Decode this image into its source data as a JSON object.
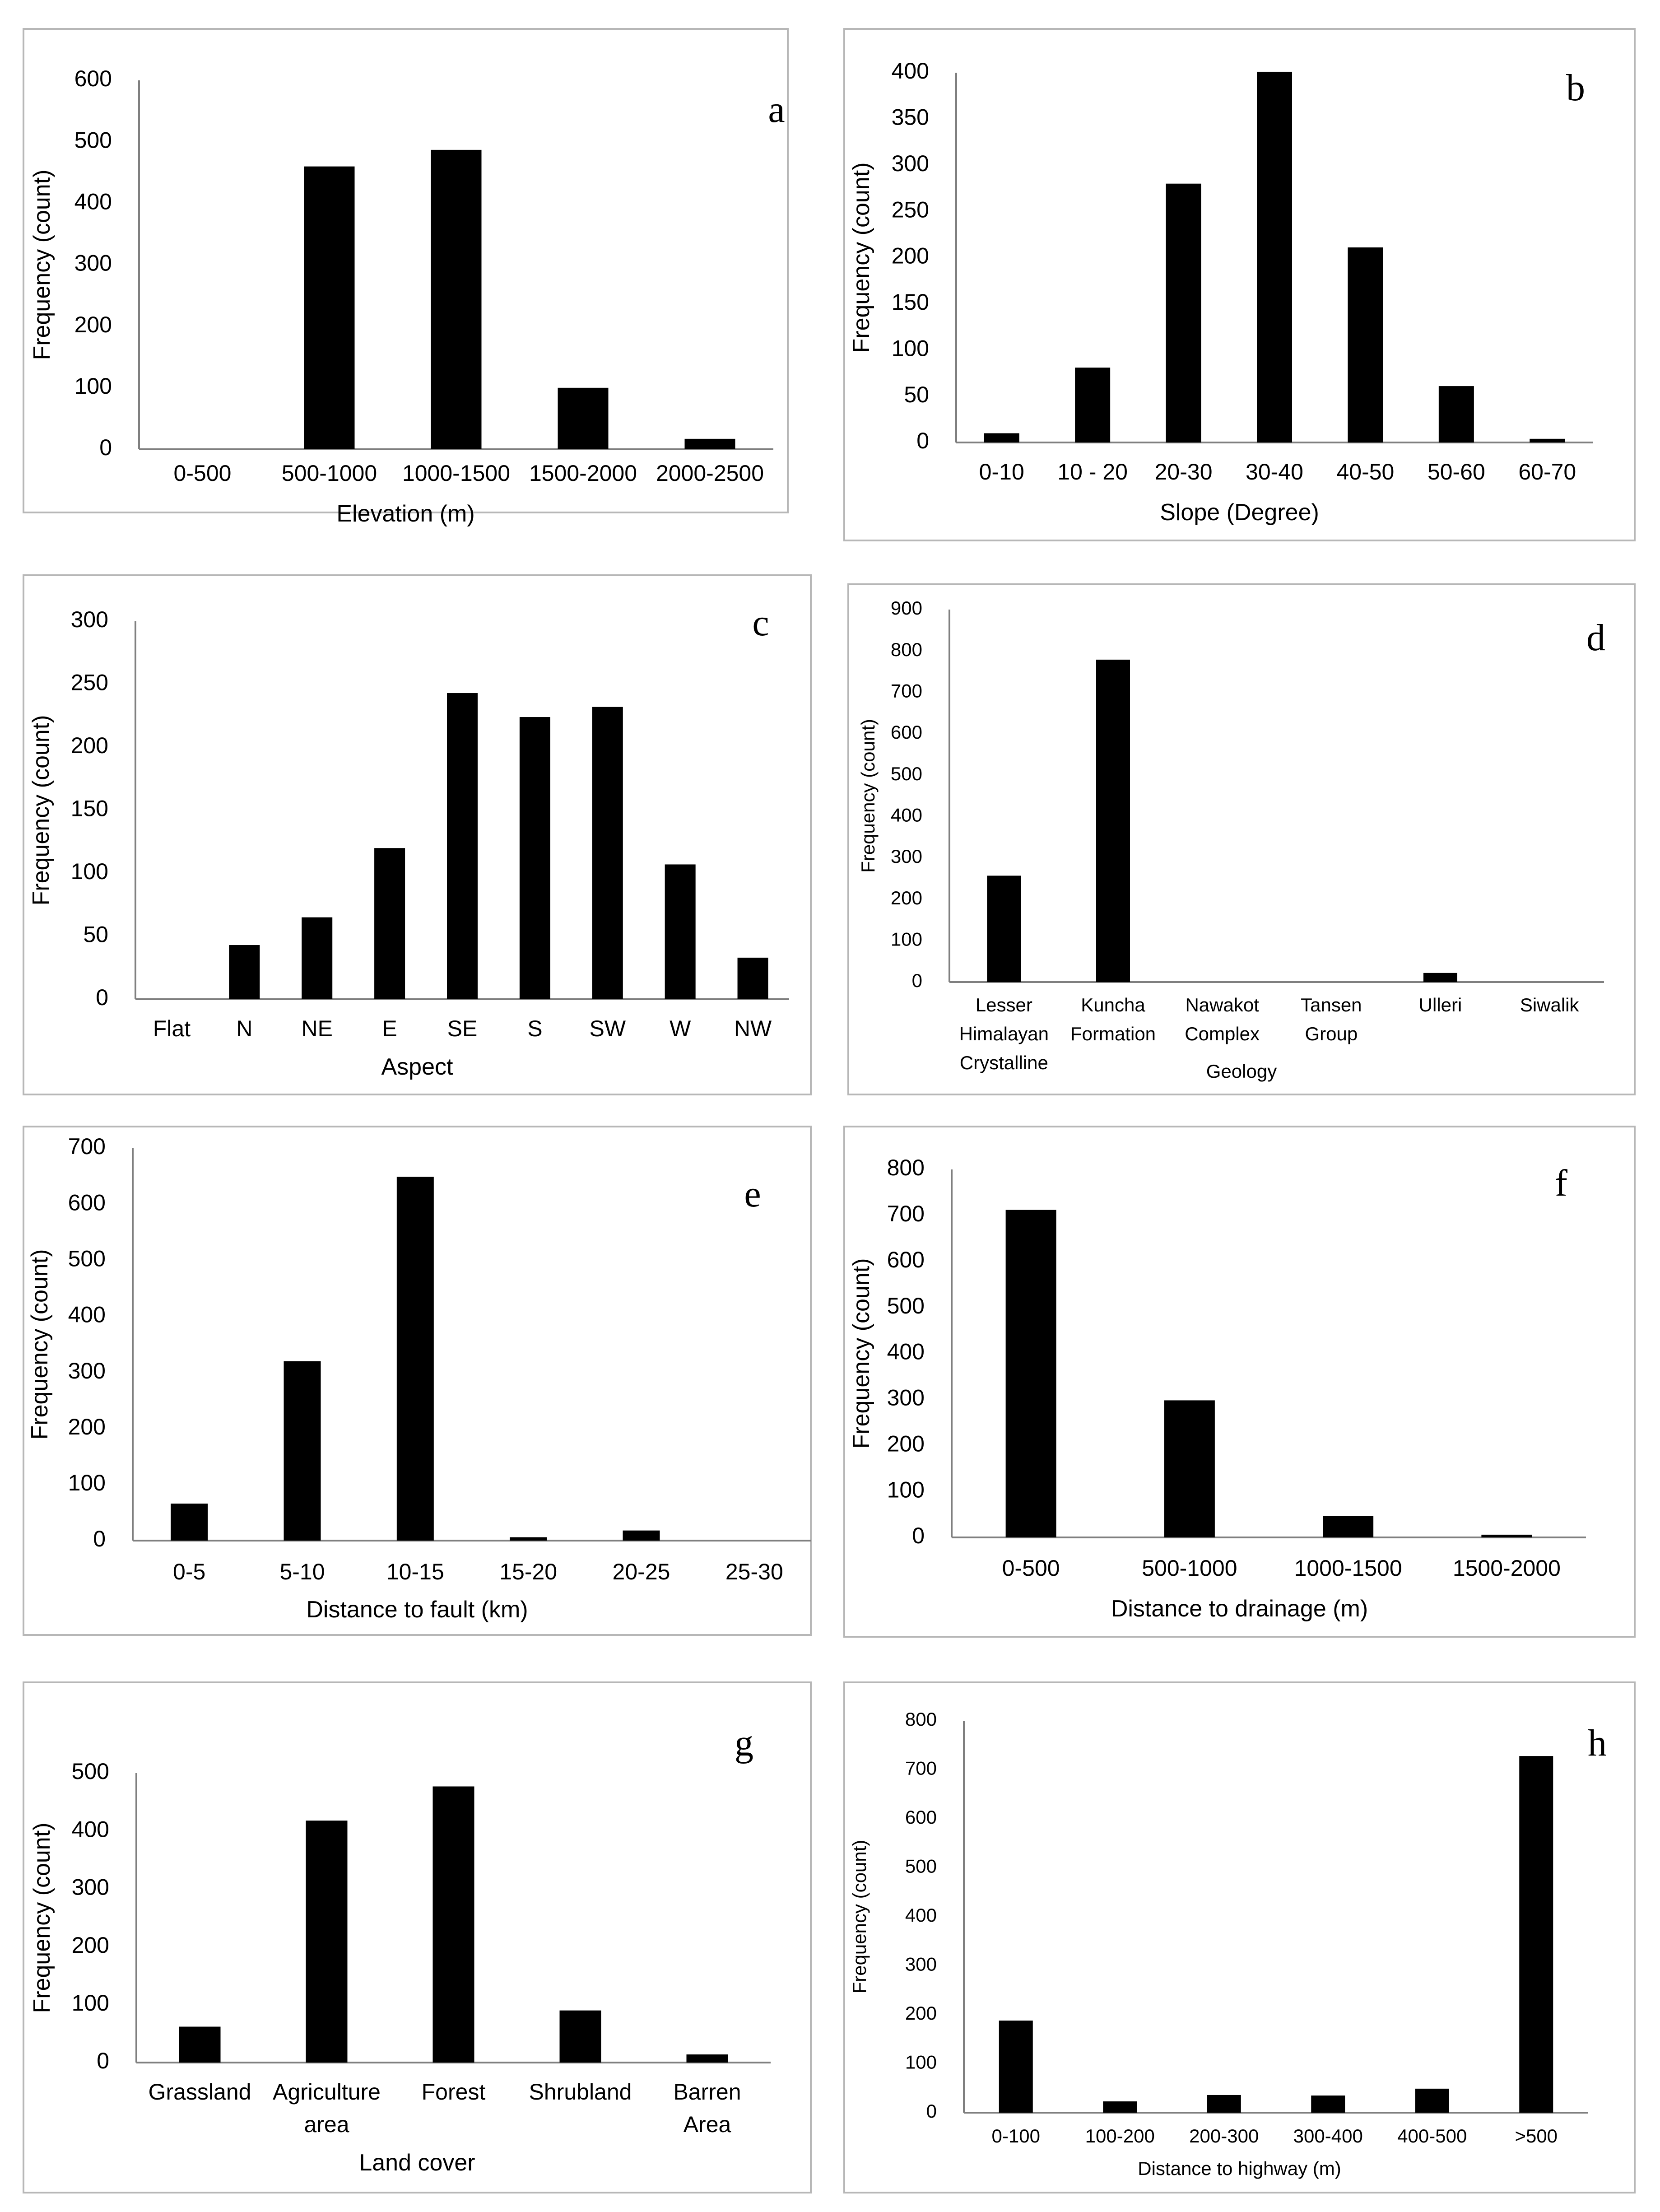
{
  "chart_data": [
    {
      "type": "bar",
      "letter": "a",
      "categories": [
        "0-500",
        "500-1000",
        "1000-1500",
        "1500-2000",
        "2000-2500"
      ],
      "values": [
        0,
        460,
        487,
        100,
        17
      ],
      "xlabel": "Elevation (m)",
      "ylabel": "Frequency (count)",
      "ylim": [
        0,
        600
      ],
      "yticks": [
        "0",
        "100",
        "200",
        "300",
        "400",
        "500",
        "600"
      ]
    },
    {
      "type": "bar",
      "letter": "b",
      "categories": [
        "0-10",
        "10 - 20",
        "20-30",
        "30-40",
        "40-50",
        "50-60",
        "60-70"
      ],
      "values": [
        10,
        81,
        280,
        401,
        211,
        61,
        4
      ],
      "xlabel": "Slope (Degree)",
      "ylabel": "Frequency (count)",
      "ylim": [
        0,
        400
      ],
      "yticks": [
        "0",
        "50",
        "100",
        "150",
        "200",
        "250",
        "300",
        "350",
        "400"
      ]
    },
    {
      "type": "bar",
      "letter": "c",
      "categories": [
        "Flat",
        "N",
        "NE",
        "E",
        "SE",
        "S",
        "SW",
        "W",
        "NW"
      ],
      "values": [
        0,
        43,
        65,
        120,
        243,
        224,
        232,
        107,
        33
      ],
      "xlabel": "Aspect",
      "ylabel": "Frequency (count)",
      "ylim": [
        0,
        300
      ],
      "yticks": [
        "0",
        "50",
        "100",
        "150",
        "200",
        "250",
        "300"
      ]
    },
    {
      "type": "bar",
      "letter": "d",
      "categories": [
        [
          "Lesser",
          "Himalayan",
          "Crystalline"
        ],
        [
          "Kuncha",
          "Formation"
        ],
        [
          "Nawakot",
          "Complex"
        ],
        [
          "Tansen",
          "Group"
        ],
        [
          "Ulleri"
        ],
        [
          "Siwalik"
        ]
      ],
      "values": [
        257,
        779,
        0,
        0,
        22,
        0
      ],
      "xlabel": "Geology",
      "ylabel": "Frequency (count)",
      "ylim": [
        0,
        900
      ],
      "yticks": [
        "0",
        "100",
        "200",
        "300",
        "400",
        "500",
        "600",
        "700",
        "800",
        "900"
      ]
    },
    {
      "type": "bar",
      "letter": "e",
      "categories": [
        "0-5",
        "5-10",
        "10-15",
        "15-20",
        "20-25",
        "25-30"
      ],
      "values": [
        66,
        320,
        649,
        6,
        18,
        0
      ],
      "xlabel": "Distance to fault (km)",
      "ylabel": "Frequency (count)",
      "ylim": [
        0,
        700
      ],
      "yticks": [
        "0",
        "100",
        "200",
        "300",
        "400",
        "500",
        "600",
        "700"
      ]
    },
    {
      "type": "bar",
      "letter": "f",
      "categories": [
        "0-500",
        "500-1000",
        "1000-1500",
        "1500-2000"
      ],
      "values": [
        712,
        298,
        47,
        6
      ],
      "xlabel": "Distance to drainage (m)",
      "ylabel": "Frequency (count)",
      "ylim": [
        0,
        800
      ],
      "yticks": [
        "0",
        "100",
        "200",
        "300",
        "400",
        "500",
        "600",
        "700",
        "800"
      ]
    },
    {
      "type": "bar",
      "letter": "g",
      "categories": [
        [
          "Grassland"
        ],
        [
          "Agriculture",
          "area"
        ],
        [
          "Forest"
        ],
        [
          "Shrubland"
        ],
        [
          "Barren",
          "Area"
        ]
      ],
      "values": [
        62,
        418,
        477,
        90,
        14
      ],
      "xlabel": "Land cover",
      "ylabel": "Frequency (count)",
      "ylim": [
        0,
        500
      ],
      "yticks": [
        "0",
        "100",
        "200",
        "300",
        "400",
        "500"
      ]
    },
    {
      "type": "bar",
      "letter": "h",
      "categories": [
        "0-100",
        "100-200",
        "200-300",
        "300-400",
        "400-500",
        ">500"
      ],
      "values": [
        188,
        23,
        36,
        35,
        49,
        728
      ],
      "xlabel": "Distance to highway (m)",
      "ylabel": "Frequency (count)",
      "ylim": [
        0,
        800
      ],
      "yticks": [
        "0",
        "100",
        "200",
        "300",
        "400",
        "500",
        "600",
        "700",
        "800"
      ]
    }
  ]
}
